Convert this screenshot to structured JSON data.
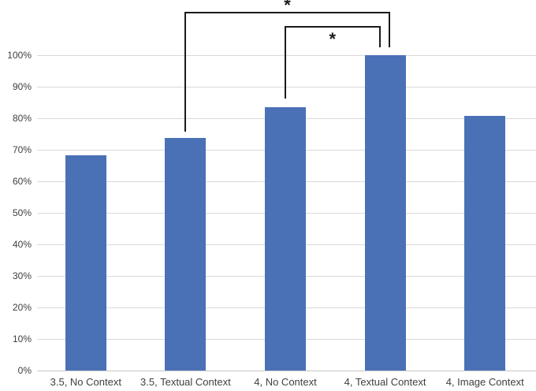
{
  "chart_data": {
    "type": "bar",
    "title": "",
    "xlabel": "",
    "ylabel": "",
    "categories": [
      "3.5, No Context",
      "3.5, Textual Context",
      "4, No Context",
      "4, Textual Context",
      "4, Image Context"
    ],
    "values": [
      68.3,
      73.8,
      83.5,
      100,
      80.8
    ],
    "value_unit": "percent",
    "ylim": [
      0,
      100
    ],
    "ytick_step": 10,
    "ytick_labels": [
      "0%",
      "10%",
      "20%",
      "30%",
      "40%",
      "50%",
      "60%",
      "70%",
      "80%",
      "90%",
      "100%"
    ],
    "grid": true,
    "legend": "none",
    "bar_color": "#4A71B6",
    "gridline_color": "#D9D9D9",
    "axis_line_color": "#C6C6C6",
    "text_color": "#3F3F3F",
    "bracket_color": "#1A1A1A",
    "significance_brackets": [
      {
        "from_category": "3.5, Textual Context",
        "to_category": "4, Textual Context",
        "from_index": 1,
        "to_index": 3,
        "label": "*",
        "top_y": 15,
        "from_gap": 8,
        "to_gap": 10,
        "to_x_offset": 5,
        "label_side": "above"
      },
      {
        "from_category": "4, No Context",
        "to_category": "4, Textual Context",
        "from_index": 2,
        "to_index": 3,
        "label": "*",
        "top_y": 33,
        "from_gap": 11,
        "to_gap": 10,
        "to_x_offset": -7,
        "label_side": "below"
      }
    ]
  }
}
